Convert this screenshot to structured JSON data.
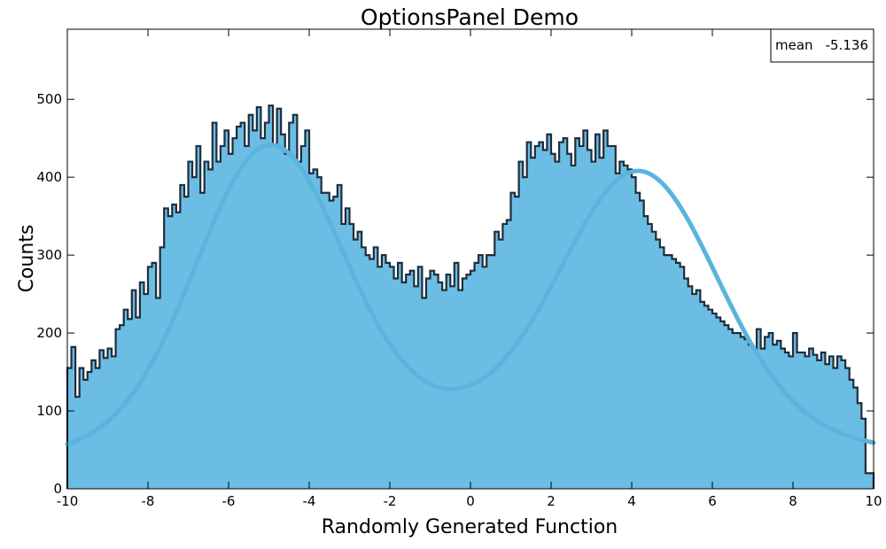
{
  "chart_data": {
    "type": "histogram",
    "title": "OptionsPanel Demo",
    "xlabel": "Randomly Generated Function",
    "ylabel": "Counts",
    "xlim": [
      -10,
      10
    ],
    "ylim": [
      0,
      590
    ],
    "xticks": [
      -10,
      -8,
      -6,
      -4,
      -2,
      0,
      2,
      4,
      6,
      8,
      10
    ],
    "yticks": [
      0,
      100,
      200,
      300,
      400,
      500
    ],
    "bin_width": 0.1,
    "fill_color": "#6cbde4",
    "line_color": "#1f2d3a",
    "fit_color": "#5ab4de",
    "stats": {
      "label": "mean",
      "value": "-5.136"
    },
    "fit": {
      "components": [
        {
          "amplitude": 360,
          "mean": -5.0,
          "sigma": 1.8
        },
        {
          "amplitude": 318,
          "mean": 4.2,
          "sigma": 1.9
        },
        {
          "amplitude": 98,
          "mean": 0.5,
          "sigma": 9.0
        }
      ]
    },
    "counts": [
      155,
      182,
      118,
      155,
      140,
      150,
      165,
      155,
      178,
      168,
      180,
      170,
      205,
      210,
      230,
      218,
      255,
      220,
      265,
      250,
      285,
      290,
      245,
      310,
      360,
      350,
      365,
      355,
      390,
      375,
      420,
      400,
      440,
      380,
      420,
      410,
      470,
      420,
      440,
      460,
      430,
      450,
      465,
      470,
      440,
      480,
      460,
      490,
      450,
      470,
      492,
      440,
      488,
      455,
      430,
      470,
      480,
      420,
      440,
      460,
      405,
      410,
      400,
      380,
      380,
      370,
      375,
      390,
      340,
      360,
      340,
      320,
      330,
      310,
      300,
      295,
      310,
      285,
      300,
      290,
      285,
      270,
      290,
      265,
      275,
      280,
      260,
      285,
      245,
      270,
      280,
      275,
      265,
      255,
      275,
      260,
      290,
      255,
      270,
      275,
      280,
      290,
      300,
      285,
      300,
      300,
      330,
      320,
      340,
      345,
      380,
      375,
      420,
      400,
      445,
      425,
      440,
      445,
      435,
      455,
      430,
      420,
      445,
      450,
      430,
      415,
      450,
      440,
      460,
      435,
      420,
      455,
      425,
      460,
      440,
      440,
      405,
      420,
      415,
      410,
      400,
      380,
      370,
      350,
      340,
      330,
      320,
      310,
      300,
      300,
      295,
      290,
      285,
      270,
      260,
      250,
      255,
      240,
      235,
      230,
      225,
      220,
      215,
      210,
      205,
      200,
      200,
      195,
      192,
      185,
      180,
      205,
      180,
      195,
      200,
      185,
      190,
      180,
      175,
      170,
      200,
      175,
      175,
      170,
      180,
      172,
      165,
      175,
      160,
      170,
      155,
      170,
      165,
      155,
      140,
      130,
      110,
      90,
      20,
      20
    ]
  }
}
